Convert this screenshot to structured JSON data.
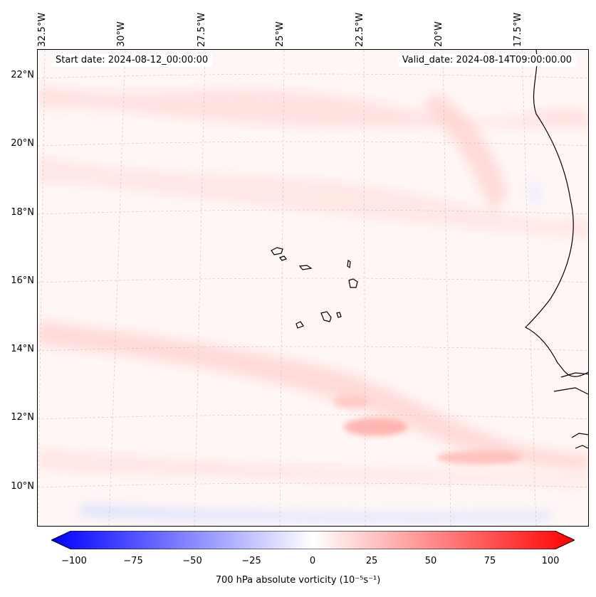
{
  "map": {
    "start_date": "Start date: 2024-08-12_00:00:00",
    "valid_date": "Valid_date: 2024-08-14T09:00:00.00",
    "lon_labels": [
      "32.5°W",
      "30°W",
      "27.5°W",
      "25°W",
      "22.5°W",
      "20°W",
      "17.5°W"
    ],
    "lat_labels": [
      "22°N",
      "20°N",
      "18°N",
      "16°N",
      "14°N",
      "12°N",
      "10°N"
    ]
  },
  "colorbar": {
    "ticks": [
      "−100",
      "−75",
      "−50",
      "−25",
      "0",
      "25",
      "50",
      "75",
      "100"
    ],
    "label": "700 hPa absolute vorticity (10⁻⁵s⁻¹)",
    "min": -100,
    "max": 100,
    "colors": {
      "negative": "#0000ff",
      "zero": "#ffffff",
      "positive": "#ff0000"
    }
  }
}
